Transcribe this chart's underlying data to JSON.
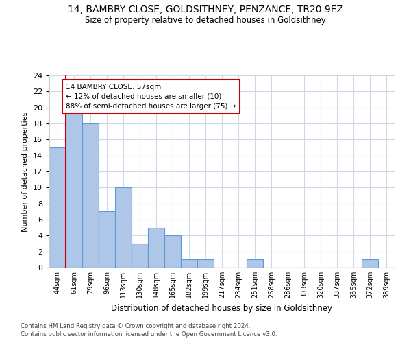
{
  "title_line1": "14, BAMBRY CLOSE, GOLDSITHNEY, PENZANCE, TR20 9EZ",
  "title_line2": "Size of property relative to detached houses in Goldsithney",
  "xlabel": "Distribution of detached houses by size in Goldsithney",
  "ylabel": "Number of detached properties",
  "categories": [
    "44sqm",
    "61sqm",
    "79sqm",
    "96sqm",
    "113sqm",
    "130sqm",
    "148sqm",
    "165sqm",
    "182sqm",
    "199sqm",
    "217sqm",
    "234sqm",
    "251sqm",
    "268sqm",
    "286sqm",
    "303sqm",
    "320sqm",
    "337sqm",
    "355sqm",
    "372sqm",
    "389sqm"
  ],
  "values": [
    15,
    20,
    18,
    7,
    10,
    3,
    5,
    4,
    1,
    1,
    0,
    0,
    1,
    0,
    0,
    0,
    0,
    0,
    0,
    1,
    0
  ],
  "bar_color": "#aec6e8",
  "bar_edge_color": "#5b9bd5",
  "annotation_line1": "14 BAMBRY CLOSE: 57sqm",
  "annotation_line2": "← 12% of detached houses are smaller (10)",
  "annotation_line3": "88% of semi-detached houses are larger (75) →",
  "vline_color": "#cc0000",
  "annotation_box_edge": "#cc0000",
  "ylim": [
    0,
    24
  ],
  "yticks": [
    0,
    2,
    4,
    6,
    8,
    10,
    12,
    14,
    16,
    18,
    20,
    22,
    24
  ],
  "background_color": "#ffffff",
  "grid_color": "#d0d8e8",
  "footnote_line1": "Contains HM Land Registry data © Crown copyright and database right 2024.",
  "footnote_line2": "Contains public sector information licensed under the Open Government Licence v3.0."
}
